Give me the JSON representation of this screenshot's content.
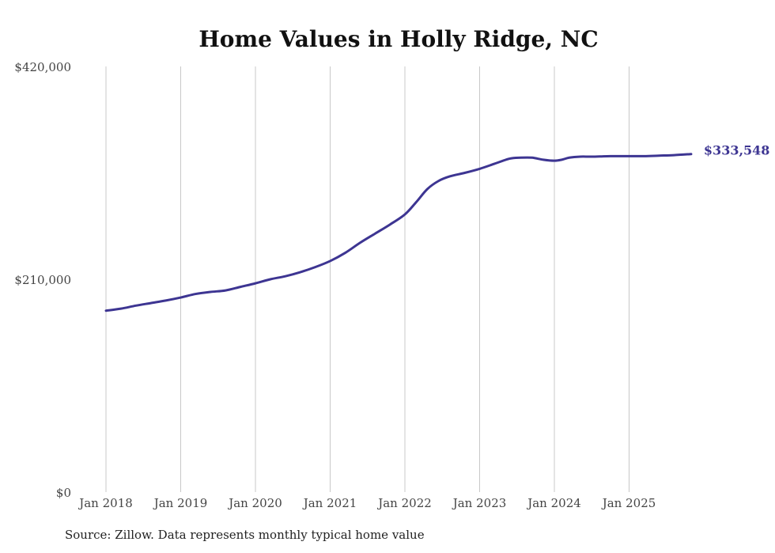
{
  "chart_data": {
    "type": "line",
    "title": "Home Values in Holly Ridge, NC",
    "xlabel": "",
    "ylabel": "",
    "ylim": [
      0,
      420000
    ],
    "grid": "vertical",
    "line_color": "#3d3592",
    "y_tick_values": [
      0,
      210000,
      420000
    ],
    "y_tick_labels": [
      "$0",
      "$210,000",
      "$420,000"
    ],
    "x_tick_labels": [
      "Jan 2018",
      "Jan 2019",
      "Jan 2020",
      "Jan 2021",
      "Jan 2022",
      "Jan 2023",
      "Jan 2024",
      "Jan 2025"
    ],
    "x_start_year": 2018,
    "x": [
      2018.0,
      2018.2,
      2018.4,
      2018.6,
      2018.8,
      2019.0,
      2019.2,
      2019.4,
      2019.6,
      2019.8,
      2020.0,
      2020.2,
      2020.4,
      2020.6,
      2020.8,
      2021.0,
      2021.2,
      2021.4,
      2021.6,
      2021.8,
      2022.0,
      2022.15,
      2022.3,
      2022.45,
      2022.6,
      2022.8,
      2023.0,
      2023.2,
      2023.4,
      2023.55,
      2023.7,
      2023.85,
      2024.0,
      2024.1,
      2024.2,
      2024.35,
      2024.5,
      2024.75,
      2025.0,
      2025.2,
      2025.4,
      2025.6,
      2025.83
    ],
    "series": [
      {
        "name": "Typical home value",
        "values": [
          179000,
          181000,
          184000,
          186500,
          189000,
          192000,
          195500,
          197500,
          199000,
          202500,
          206000,
          210000,
          213000,
          217000,
          222000,
          228000,
          236000,
          246000,
          255000,
          264000,
          274000,
          286000,
          299000,
          307000,
          311500,
          315000,
          319000,
          324000,
          329000,
          330000,
          330000,
          328000,
          327000,
          328000,
          330000,
          331000,
          331000,
          331500,
          331500,
          331500,
          332000,
          332500,
          333548
        ]
      }
    ],
    "end_label": "$333,548"
  },
  "source": "Source: Zillow. Data represents monthly typical home value"
}
